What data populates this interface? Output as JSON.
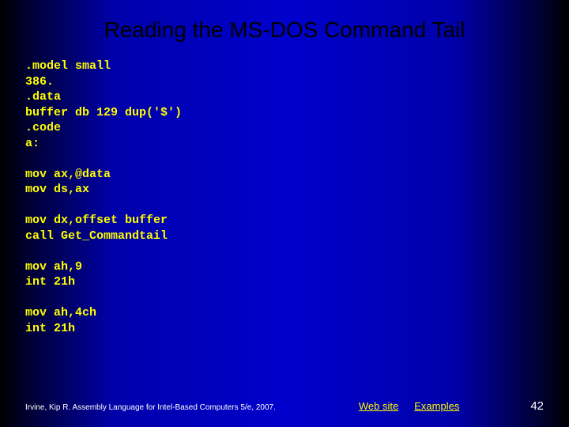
{
  "slide": {
    "title": "Reading the MS-DOS Command Tail",
    "code_lines": [
      ".model small",
      "386.",
      ".data",
      "buffer db 129 dup('$')",
      ".code",
      "a:",
      "",
      "mov ax,@data",
      "mov ds,ax",
      "",
      "mov dx,offset buffer",
      "call Get_Commandtail",
      "",
      "mov ah,9",
      "int 21h",
      "",
      "mov ah,4ch",
      "int 21h"
    ]
  },
  "footer": {
    "citation": "Irvine, Kip R. Assembly Language for Intel-Based Computers 5/e, 2007.",
    "link1": "Web site",
    "link2": "Examples",
    "page_number": "42"
  },
  "styling": {
    "title_color": "#000000",
    "title_fontsize": 28,
    "code_color": "#ffff00",
    "code_fontsize": 15,
    "code_font": "Courier New",
    "footer_text_color": "#ffffff",
    "footer_link_color": "#ffff00",
    "background_gradient": [
      "#000000",
      "#000033",
      "#0000aa",
      "#0000cc",
      "#0000aa",
      "#000033",
      "#000000"
    ],
    "slide_width": 720,
    "slide_height": 540
  }
}
